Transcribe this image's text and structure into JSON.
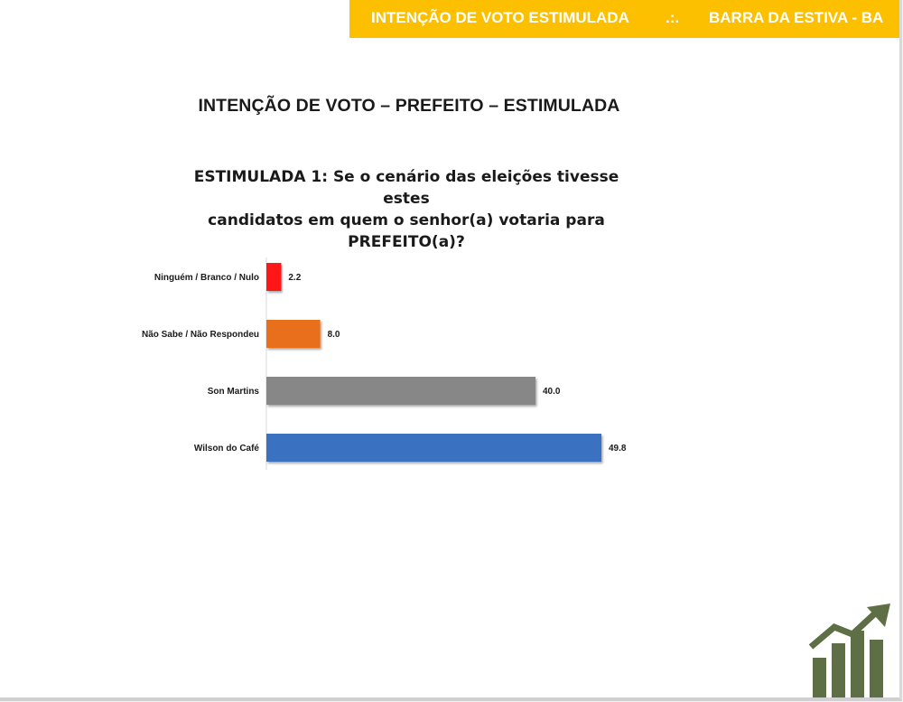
{
  "banner": {
    "left": "INTENÇÃO DE VOTO ESTIMULADA",
    "separator": ".:.",
    "right": "BARRA DA ESTIVA - BA"
  },
  "main_title": "INTENÇÃO DE VOTO – PREFEITO – ESTIMULADA",
  "question": {
    "line1": "ESTIMULADA 1: Se o cenário das eleições tivesse estes",
    "line2": "candidatos em quem o senhor(a) votaria para",
    "line3": "PREFEITO(a)?"
  },
  "chart_data": {
    "type": "bar",
    "orientation": "horizontal",
    "title": "",
    "xlabel": "",
    "ylabel": "",
    "grid": false,
    "legend": "none",
    "xlim": [
      0,
      49.8
    ],
    "categories": [
      "Ninguém / Branco / Nulo",
      "Não Sabe / Não Respondeu",
      "Son Martins",
      "Wilson do Café"
    ],
    "values": [
      2.2,
      8.0,
      40.0,
      49.8
    ],
    "value_labels": [
      "2.2",
      "8.0",
      "40.0",
      "49.8"
    ],
    "colors": [
      "#ff1414",
      "#e8701a",
      "#878787",
      "#3a71c1"
    ]
  },
  "logo": {
    "icon": "growth-chart-logo-icon",
    "color": "#5f6f45"
  }
}
